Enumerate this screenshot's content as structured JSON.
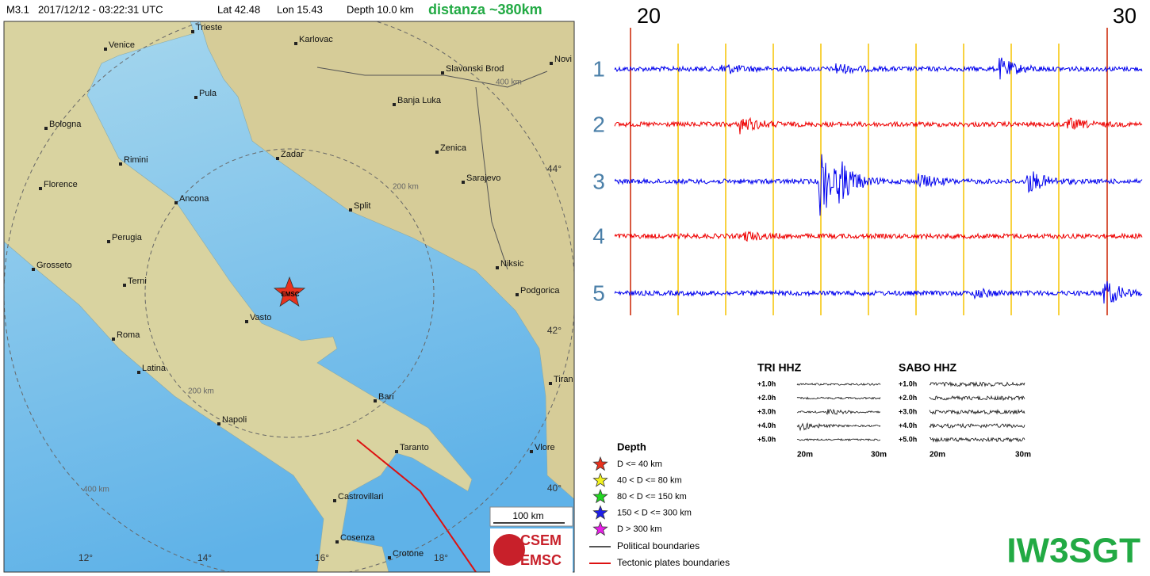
{
  "header": {
    "magnitude": "M3.1",
    "datetime": "2017/12/12 - 03:22:31 UTC",
    "lat": "Lat 42.48",
    "lon": "Lon 15.43",
    "depth": "Depth 10.0 km",
    "distance": "distanza ~380km"
  },
  "map": {
    "cities": [
      "Trieste",
      "Karlovac",
      "Venice",
      "Novi",
      "Slavonski Brod",
      "Pula",
      "Banja Luka",
      "Bologna",
      "Zenica",
      "Rimini",
      "Zadar",
      "Sarajevo",
      "Florence",
      "Ancona",
      "Split",
      "Perugia",
      "Grosseto",
      "Niksic",
      "Terni",
      "Podgorica",
      "Vasto",
      "Roma",
      "Latina",
      "Bari",
      "Tiran",
      "Napoli",
      "Taranto",
      "Vlore",
      "Castrovillari",
      "Cosenza",
      "Crotone"
    ],
    "ring_labels": [
      "400 km",
      "200 km",
      "200 km",
      "400 km"
    ],
    "lat_labels": [
      "44°",
      "42°",
      "40°"
    ],
    "lon_labels": [
      "12°",
      "14°",
      "16°",
      "18°"
    ],
    "epicenter_label": "EMSC",
    "scale": "100 km",
    "logo": [
      "CSEM",
      "EMSC"
    ]
  },
  "legend": {
    "title": "Depth",
    "items": [
      {
        "label": "D <= 40 km",
        "color": "#e8321e"
      },
      {
        "label": "40 < D <= 80 km",
        "color": "#f2f21e"
      },
      {
        "label": "80 < D <= 150 km",
        "color": "#22d622"
      },
      {
        "label": "150 < D <= 300 km",
        "color": "#1e1ee8"
      },
      {
        "label": "D > 300 km",
        "color": "#e81ee8"
      }
    ],
    "lines": [
      {
        "label": "Political boundaries",
        "color": "#555555"
      },
      {
        "label": "Tectonic plates boundaries",
        "color": "#dd1111"
      }
    ]
  },
  "seismogram": {
    "minutes": [
      "20",
      "30"
    ],
    "traces": [
      {
        "label": "1",
        "color": "#0000ee"
      },
      {
        "label": "2",
        "color": "#ee0000"
      },
      {
        "label": "3",
        "color": "#0000ee"
      },
      {
        "label": "4",
        "color": "#ee0000"
      },
      {
        "label": "5",
        "color": "#0000ee"
      }
    ]
  },
  "mini": {
    "stations": [
      "TRI HHZ",
      "SABO HHZ"
    ],
    "hours": [
      "+1.0h",
      "+2.0h",
      "+3.0h",
      "+4.0h",
      "+5.0h"
    ],
    "xlabels": [
      "20m",
      "30m"
    ]
  },
  "callsign": "IW3SGT"
}
